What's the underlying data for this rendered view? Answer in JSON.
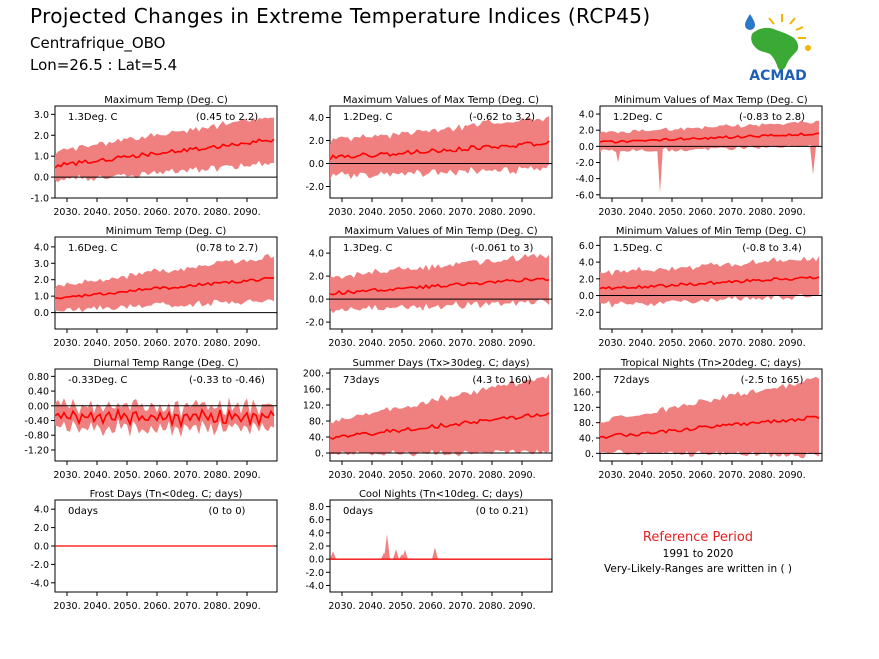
{
  "header": {
    "title": "Projected Changes in Extreme Temperature Indices (RCP45)",
    "region": "Centrafrique_OBO",
    "coords": "Lon=26.5 : Lat=5.4"
  },
  "logo": {
    "text": "ACMAD",
    "icon": "africa-map-logo"
  },
  "reference": {
    "title": "Reference Period",
    "years": "1991 to 2020",
    "note": "Very-Likely-Ranges are written in ( )"
  },
  "colors": {
    "band": "#f08080",
    "line": "#ff0000",
    "zero": "#000000"
  },
  "x_ticks": [
    "2030.",
    "2040.",
    "2050.",
    "2060.",
    "2070.",
    "2080.",
    "2090."
  ],
  "chart_data": [
    {
      "type": "area",
      "title": "Maximum Temp (Deg. C)",
      "mean_label": "1.3Deg. C",
      "range_label": "(0.45 to 2.2)",
      "xlim": [
        2026,
        2100
      ],
      "ylim": [
        -1.0,
        3.4
      ],
      "yticks": [
        -1.0,
        0.0,
        1.0,
        2.0,
        3.0
      ],
      "tick_labels": [
        "-1.0",
        "0.0",
        "1.0",
        "2.0",
        "3.0"
      ],
      "mean_start": 0.55,
      "mean_end": 1.8,
      "band_start": 0.6,
      "band_end": 1.0,
      "noise": 0.1,
      "band_noise": 0.25
    },
    {
      "type": "area",
      "title": "Maximum Values of Max Temp (Deg. C)",
      "mean_label": "1.2Deg. C",
      "range_label": "(-0.62 to 3.2)",
      "xlim": [
        2026,
        2100
      ],
      "ylim": [
        -3.0,
        5.0
      ],
      "yticks": [
        -2.0,
        0.0,
        2.0,
        4.0
      ],
      "tick_labels": [
        "-2.0",
        "0.0",
        "2.0",
        "4.0"
      ],
      "mean_start": 0.5,
      "mean_end": 1.8,
      "band_start": 1.3,
      "band_end": 2.0,
      "noise": 0.2,
      "band_noise": 0.5
    },
    {
      "type": "area",
      "title": "Minimum Values of Max Temp (Deg. C)",
      "mean_label": "1.2Deg. C",
      "range_label": "(-0.83 to 2.8)",
      "xlim": [
        2026,
        2100
      ],
      "ylim": [
        -6.4,
        5.0
      ],
      "yticks": [
        -6.0,
        -4.0,
        -2.0,
        0.0,
        2.0,
        4.0
      ],
      "tick_labels": [
        "-6.0",
        "-4.0",
        "-2.0",
        "0.0",
        "2.0",
        "4.0"
      ],
      "mean_start": 0.5,
      "mean_end": 1.6,
      "band_start": 1.0,
      "band_end": 1.3,
      "noise": 0.15,
      "band_noise": 0.4,
      "spikes": [
        [
          2032,
          -2.0
        ],
        [
          2046,
          -5.8
        ],
        [
          2097,
          -3.5
        ]
      ]
    },
    {
      "type": "area",
      "title": "Minimum Temp (Deg. C)",
      "mean_label": "1.6Deg. C",
      "range_label": "(0.78 to 2.7)",
      "xlim": [
        2026,
        2100
      ],
      "ylim": [
        -1.0,
        4.6
      ],
      "yticks": [
        0.0,
        1.0,
        2.0,
        3.0,
        4.0
      ],
      "tick_labels": [
        "0.0",
        "1.0",
        "2.0",
        "3.0",
        "4.0"
      ],
      "mean_start": 0.9,
      "mean_end": 2.1,
      "band_start": 0.6,
      "band_end": 1.2,
      "noise": 0.1,
      "band_noise": 0.3
    },
    {
      "type": "area",
      "title": "Maximum Values of Min Temp (Deg. C)",
      "mean_label": "1.3Deg. C",
      "range_label": "(-0.061 to 3)",
      "xlim": [
        2026,
        2100
      ],
      "ylim": [
        -2.6,
        5.4
      ],
      "yticks": [
        -2.0,
        0.0,
        2.0,
        4.0
      ],
      "tick_labels": [
        "-2.0",
        "0.0",
        "2.0",
        "4.0"
      ],
      "mean_start": 0.5,
      "mean_end": 1.8,
      "band_start": 1.2,
      "band_end": 1.8,
      "noise": 0.15,
      "band_noise": 0.5
    },
    {
      "type": "area",
      "title": "Minimum Values of Min Temp (Deg. C)",
      "mean_label": "1.5Deg. C",
      "range_label": "(-0.8 to 3.4)",
      "xlim": [
        2026,
        2100
      ],
      "ylim": [
        -4.0,
        7.0
      ],
      "yticks": [
        -2.0,
        0.0,
        2.0,
        4.0,
        6.0
      ],
      "tick_labels": [
        "-2.0",
        "0.0",
        "2.0",
        "4.0",
        "6.0"
      ],
      "mean_start": 0.8,
      "mean_end": 2.2,
      "band_start": 1.6,
      "band_end": 2.0,
      "noise": 0.2,
      "band_noise": 0.6
    },
    {
      "type": "area",
      "title": "Diurnal Temp Range (Deg. C)",
      "mean_label": "-0.33Deg. C",
      "range_label": "(-0.33 to -0.46)",
      "xlim": [
        2026,
        2100
      ],
      "ylim": [
        -1.5,
        1.0
      ],
      "yticks": [
        -1.2,
        -0.8,
        -0.4,
        0.0,
        0.4,
        0.8
      ],
      "tick_labels": [
        "-1.20",
        "-0.80",
        "-0.40",
        "0.00",
        "0.40",
        "0.80"
      ],
      "mean_start": -0.3,
      "mean_end": -0.35,
      "band_start": 0.2,
      "band_end": 0.2,
      "noise": 0.12,
      "band_noise": 0.2,
      "zigzag": true
    },
    {
      "type": "area",
      "title": "Summer Days (Tx>30deg. C; days)",
      "mean_label": "73days",
      "range_label": "(4.3 to 160)",
      "xlim": [
        2026,
        2100
      ],
      "ylim": [
        -20,
        210
      ],
      "yticks": [
        0,
        40,
        80,
        120,
        160,
        200
      ],
      "tick_labels": [
        "0.",
        "40.",
        "80.",
        "120.",
        "160.",
        "200."
      ],
      "mean_start": 38,
      "mean_end": 98,
      "band_start": 35,
      "band_end": 90,
      "noise": 5,
      "band_noise": 10
    },
    {
      "type": "area",
      "title": "Tropical Nights (Tn>20deg. C; days)",
      "mean_label": "72days",
      "range_label": "(-2.5 to 165)",
      "xlim": [
        2026,
        2100
      ],
      "ylim": [
        -20,
        220
      ],
      "yticks": [
        0,
        40,
        80,
        120,
        160,
        200
      ],
      "tick_labels": [
        "0.",
        "40.",
        "80.",
        "120.",
        "160.",
        "200."
      ],
      "mean_start": 42,
      "mean_end": 95,
      "band_start": 35,
      "band_end": 95,
      "noise": 5,
      "band_noise": 10
    },
    {
      "type": "area",
      "title": "Frost Days (Tn<0deg. C; days)",
      "mean_label": "0days",
      "range_label": "(0 to 0)",
      "xlim": [
        2026,
        2100
      ],
      "ylim": [
        -5.0,
        5.0
      ],
      "yticks": [
        -4.0,
        -2.0,
        0.0,
        2.0,
        4.0
      ],
      "tick_labels": [
        "-4.0",
        "-2.0",
        "0.0",
        "2.0",
        "4.0"
      ],
      "mean_start": 0,
      "mean_end": 0,
      "band_start": 0,
      "band_end": 0,
      "noise": 0,
      "band_noise": 0,
      "flat": true
    },
    {
      "type": "area",
      "title": "Cool Nights (Tn<10deg. C; days)",
      "mean_label": "0days",
      "range_label": "(0 to 0.21)",
      "xlim": [
        2026,
        2100
      ],
      "ylim": [
        -5.0,
        9.0
      ],
      "yticks": [
        -4.0,
        -2.0,
        0.0,
        2.0,
        4.0,
        6.0,
        8.0
      ],
      "tick_labels": [
        "-4.0",
        "-2.0",
        "0.0",
        "2.0",
        "4.0",
        "6.0",
        "8.0"
      ],
      "mean_start": 0,
      "mean_end": 0,
      "band_start": 0,
      "band_end": 0,
      "noise": 0,
      "band_noise": 0,
      "flat": true,
      "spikes": [
        [
          2027,
          1.2
        ],
        [
          2044,
          1.0
        ],
        [
          2045,
          3.8
        ],
        [
          2048,
          1.5
        ],
        [
          2050,
          0.8
        ],
        [
          2051,
          1.4
        ],
        [
          2061,
          1.8
        ]
      ]
    }
  ]
}
